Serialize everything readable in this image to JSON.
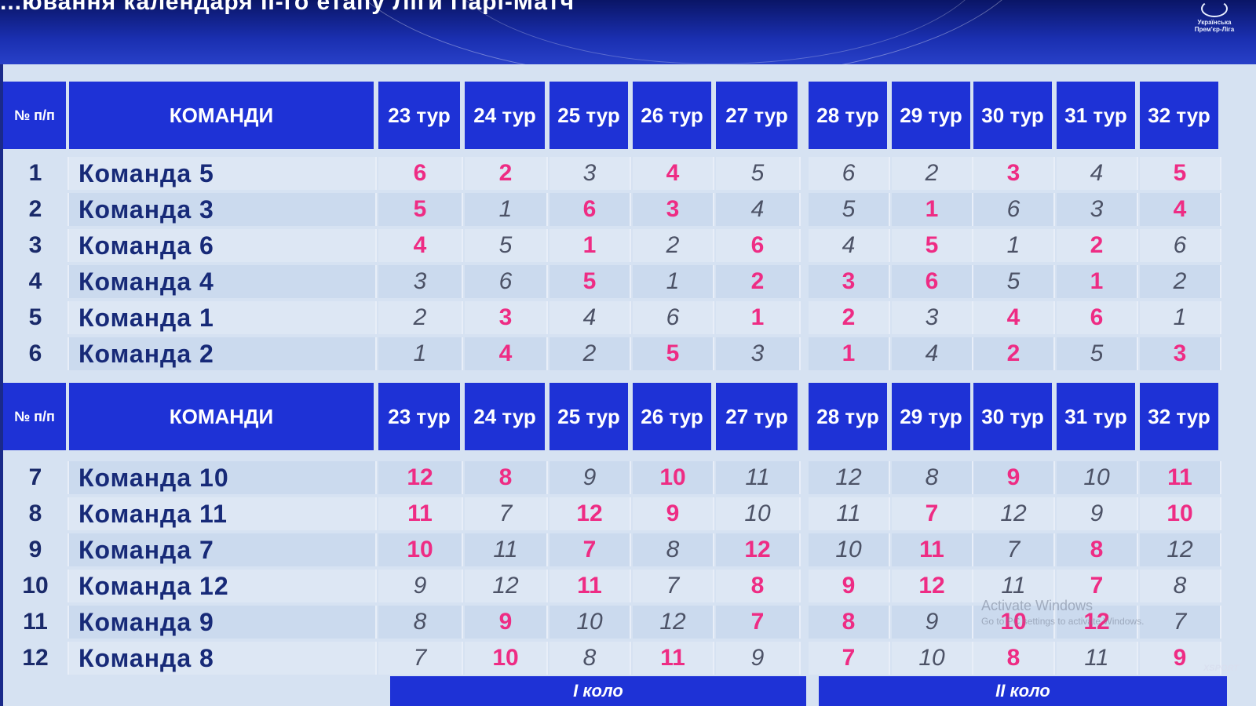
{
  "banner": {
    "title": "...ювання календаря ІІ-го етапу Ліги Парі-Матч",
    "logo_text": "Українська Прем'єр-Ліга"
  },
  "table_header": {
    "num": "№ п/п",
    "teams": "КОМАНДИ",
    "rounds": [
      "23 тур",
      "24 тур",
      "25 тур",
      "26 тур",
      "27 тур",
      "28 тур",
      "29 тур",
      "30 тур",
      "31 тур",
      "32 тур"
    ]
  },
  "group1": [
    {
      "n": "1",
      "team": "Команда 5",
      "v": [
        "6",
        "2",
        "3",
        "4",
        "5",
        "6",
        "2",
        "3",
        "4",
        "5"
      ],
      "h": [
        1,
        1,
        0,
        1,
        0,
        0,
        0,
        1,
        0,
        1
      ]
    },
    {
      "n": "2",
      "team": "Команда 3",
      "v": [
        "5",
        "1",
        "6",
        "3",
        "4",
        "5",
        "1",
        "6",
        "3",
        "4"
      ],
      "h": [
        1,
        0,
        1,
        1,
        0,
        0,
        1,
        0,
        0,
        1
      ]
    },
    {
      "n": "3",
      "team": "Команда 6",
      "v": [
        "4",
        "5",
        "1",
        "2",
        "6",
        "4",
        "5",
        "1",
        "2",
        "6"
      ],
      "h": [
        1,
        0,
        1,
        0,
        1,
        0,
        1,
        0,
        1,
        0
      ]
    },
    {
      "n": "4",
      "team": "Команда 4",
      "v": [
        "3",
        "6",
        "5",
        "1",
        "2",
        "3",
        "6",
        "5",
        "1",
        "2"
      ],
      "h": [
        0,
        0,
        1,
        0,
        1,
        1,
        1,
        0,
        1,
        0
      ]
    },
    {
      "n": "5",
      "team": "Команда 1",
      "v": [
        "2",
        "3",
        "4",
        "6",
        "1",
        "2",
        "3",
        "4",
        "6",
        "1"
      ],
      "h": [
        0,
        1,
        0,
        0,
        1,
        1,
        0,
        1,
        1,
        0
      ]
    },
    {
      "n": "6",
      "team": "Команда 2",
      "v": [
        "1",
        "4",
        "2",
        "5",
        "3",
        "1",
        "4",
        "2",
        "5",
        "3"
      ],
      "h": [
        0,
        1,
        0,
        1,
        0,
        1,
        0,
        1,
        0,
        1
      ]
    }
  ],
  "group2": [
    {
      "n": "7",
      "team": "Команда 10",
      "v": [
        "12",
        "8",
        "9",
        "10",
        "11",
        "12",
        "8",
        "9",
        "10",
        "11"
      ],
      "h": [
        1,
        1,
        0,
        1,
        0,
        0,
        0,
        1,
        0,
        1
      ]
    },
    {
      "n": "8",
      "team": "Команда 11",
      "v": [
        "11",
        "7",
        "12",
        "9",
        "10",
        "11",
        "7",
        "12",
        "9",
        "10"
      ],
      "h": [
        1,
        0,
        1,
        1,
        0,
        0,
        1,
        0,
        0,
        1
      ]
    },
    {
      "n": "9",
      "team": "Команда 7",
      "v": [
        "10",
        "11",
        "7",
        "8",
        "12",
        "10",
        "11",
        "7",
        "8",
        "12"
      ],
      "h": [
        1,
        0,
        1,
        0,
        1,
        0,
        1,
        0,
        1,
        0
      ]
    },
    {
      "n": "10",
      "team": "Команда 12",
      "v": [
        "9",
        "12",
        "11",
        "7",
        "8",
        "9",
        "12",
        "11",
        "7",
        "8"
      ],
      "h": [
        0,
        0,
        1,
        0,
        1,
        1,
        1,
        0,
        1,
        0
      ]
    },
    {
      "n": "11",
      "team": "Команда 9",
      "v": [
        "8",
        "9",
        "10",
        "12",
        "7",
        "8",
        "9",
        "10",
        "12",
        "7"
      ],
      "h": [
        0,
        1,
        0,
        0,
        1,
        1,
        0,
        1,
        1,
        0
      ]
    },
    {
      "n": "12",
      "team": "Команда 8",
      "v": [
        "7",
        "10",
        "8",
        "11",
        "9",
        "7",
        "10",
        "8",
        "11",
        "9"
      ],
      "h": [
        0,
        1,
        0,
        1,
        0,
        1,
        0,
        1,
        0,
        1
      ]
    }
  ],
  "rounds_footer": {
    "first": "І коло",
    "second": "ІІ коло"
  },
  "watermark": {
    "line1": "Activate Windows",
    "line2": "Go to PC settings to activate Windows."
  },
  "channel": "XSPORT",
  "colors": {
    "header_blue": "#1e32d6",
    "home_pink": "#ee2c84",
    "away_gray": "#4c5266"
  }
}
